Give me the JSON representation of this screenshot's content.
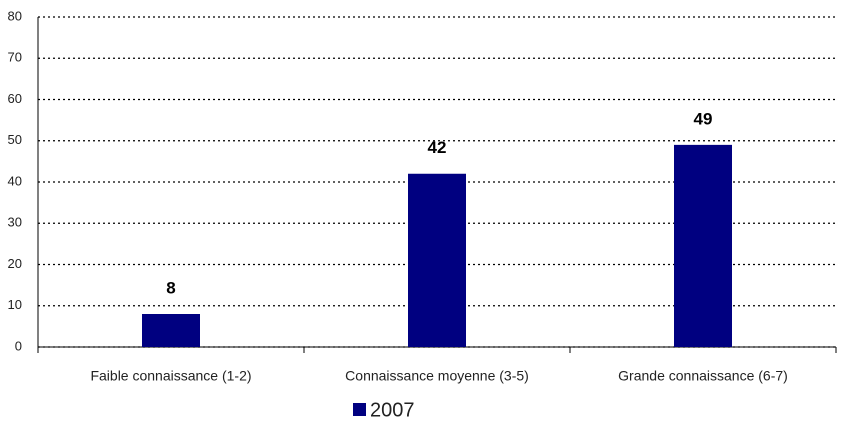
{
  "chart_data": {
    "type": "bar",
    "categories": [
      "Faible connaissance (1-2)",
      "Connaissance moyenne (3-5)",
      "Grande connaissance (6-7)"
    ],
    "series": [
      {
        "name": "2007",
        "color": "#000080",
        "values": [
          8,
          42,
          49
        ]
      }
    ],
    "ylim": [
      0,
      80
    ],
    "yticks": [
      0,
      10,
      20,
      30,
      40,
      50,
      60,
      70,
      80
    ],
    "grid": true,
    "legend": "bottom"
  }
}
